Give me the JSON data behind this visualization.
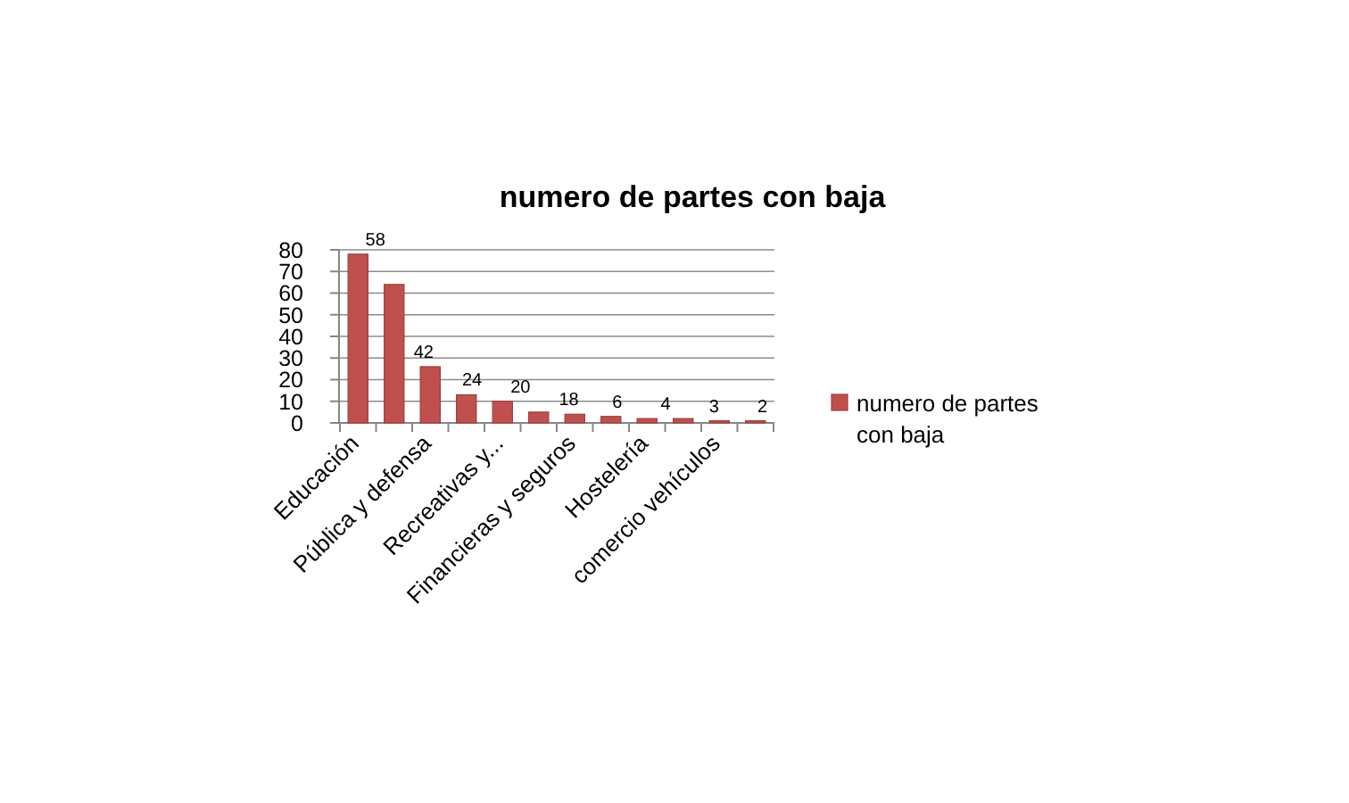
{
  "chart_data": {
    "type": "bar",
    "title": "numero de partes con baja",
    "categories": [
      "Educación",
      null,
      "Pública y defensa",
      null,
      "Recreativas y...",
      null,
      "Financieras y seguros",
      null,
      "Hostelería",
      null,
      "comercio vehículos",
      null
    ],
    "series": [
      {
        "name": "numero de partes con baja",
        "color": "#c0504d",
        "values": [
          78,
          64,
          26,
          13,
          10,
          5,
          4,
          3,
          2,
          2,
          1,
          1
        ]
      }
    ],
    "ylim": [
      0,
      80
    ],
    "yticks": [
      0,
      10,
      20,
      30,
      40,
      50,
      60,
      70,
      80
    ],
    "grid": "y",
    "legend": "right",
    "annotations": [
      "58",
      "42",
      "24",
      "20",
      "18",
      "6",
      "4",
      "3",
      "2"
    ]
  }
}
